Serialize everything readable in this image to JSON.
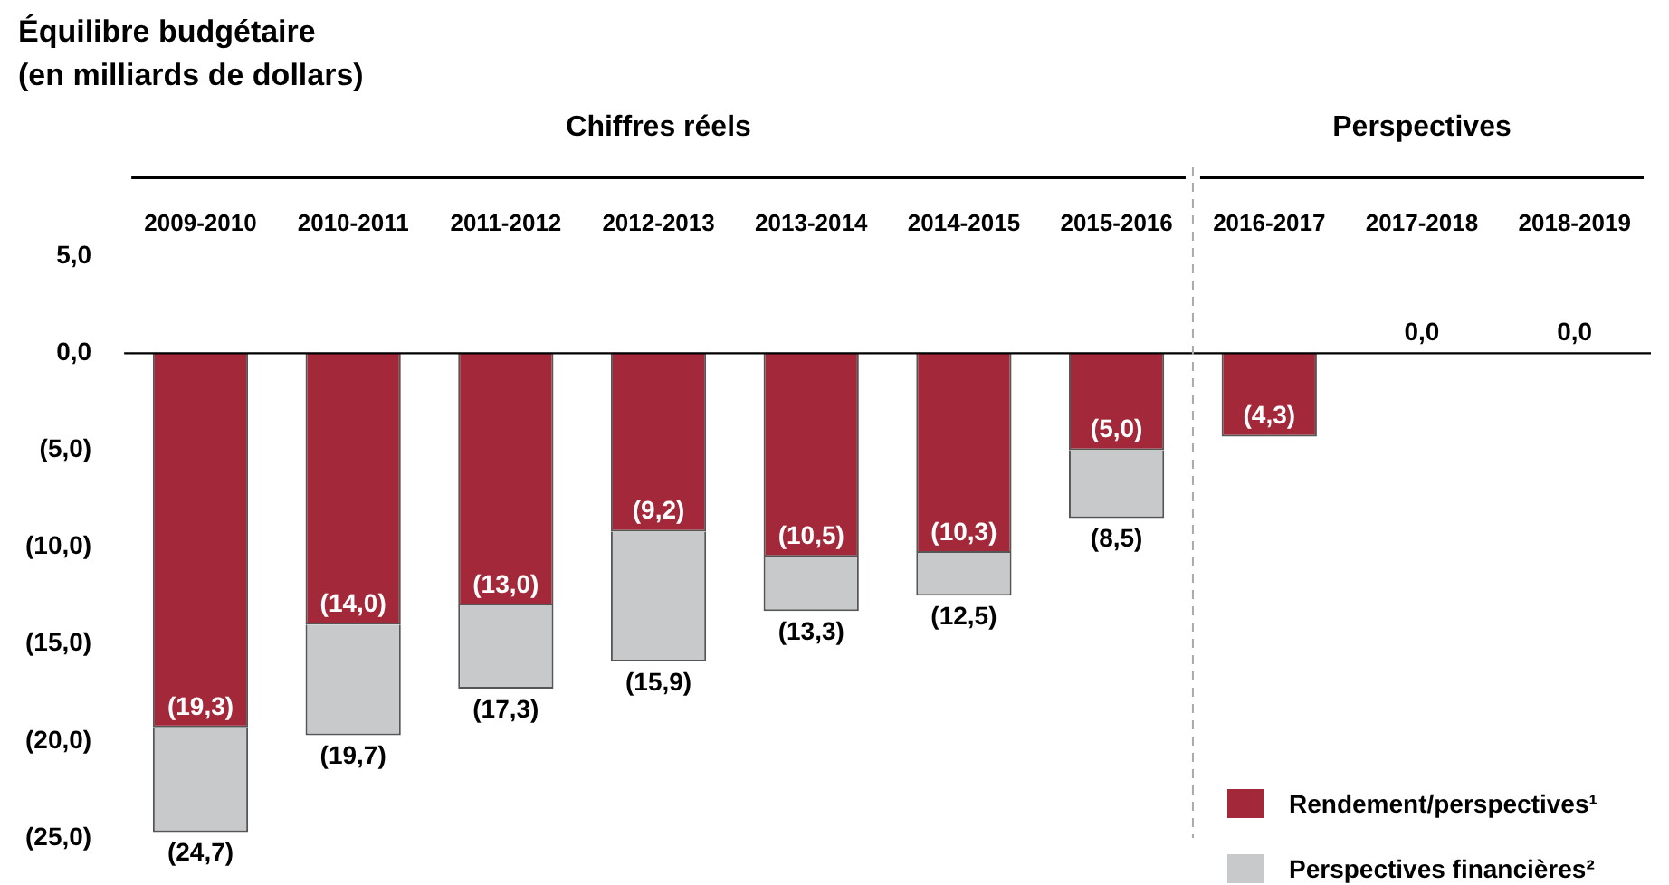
{
  "chart_data": {
    "type": "bar",
    "title": "Équilibre budgétaire\n(en milliards de dollars)",
    "stacked": true,
    "legend": "bottom right",
    "categories": [
      "2009-2010",
      "2010-2011",
      "2011-2012",
      "2012-2013",
      "2013-2014",
      "2014-2015",
      "2015-2016",
      "2016-2017",
      "2017-2018",
      "2018-2019"
    ],
    "series": [
      {
        "name": "Rendement/perspectives¹",
        "color": "#a3293a",
        "values": [
          -19.3,
          -14.0,
          -13.0,
          -9.2,
          -10.5,
          -10.3,
          -5.0,
          -4.3,
          0.0,
          0.0
        ],
        "value_labels": [
          "(19,3)",
          "(14,0)",
          "(13,0)",
          "(9,2)",
          "(10,5)",
          "(10,3)",
          "(5,0)",
          "(4,3)",
          "0,0",
          "0,0"
        ]
      },
      {
        "name": "Perspectives financières²",
        "color": "#c8c9cb",
        "values": [
          -5.4,
          -5.7,
          -4.3,
          -6.7,
          -2.8,
          -2.2,
          -3.5,
          null,
          null,
          null
        ]
      }
    ],
    "totals": [
      "(24,7)",
      "(19,7)",
      "(17,3)",
      "(15,9)",
      "(13,3)",
      "(12,5)",
      "(8,5)",
      null,
      null,
      null
    ],
    "ylim": [
      -25,
      5
    ],
    "yticks": [
      {
        "value": 5,
        "label": "5,0"
      },
      {
        "value": 0,
        "label": "0,0"
      },
      {
        "value": -5,
        "label": "(5,0)"
      },
      {
        "value": -10,
        "label": "(10,0)"
      },
      {
        "value": -15,
        "label": "(15,0)"
      },
      {
        "value": -20,
        "label": "(20,0)"
      },
      {
        "value": -25,
        "label": "(25,0)"
      }
    ],
    "ref_lines": [
      {
        "axis": "y",
        "value": 0
      },
      {
        "axis": "x",
        "value": "2016-2017",
        "color": "#aaaaaa",
        "line_style": "dashed"
      }
    ],
    "annotations": [
      "Chiffres réels",
      "Perspectives"
    ]
  }
}
